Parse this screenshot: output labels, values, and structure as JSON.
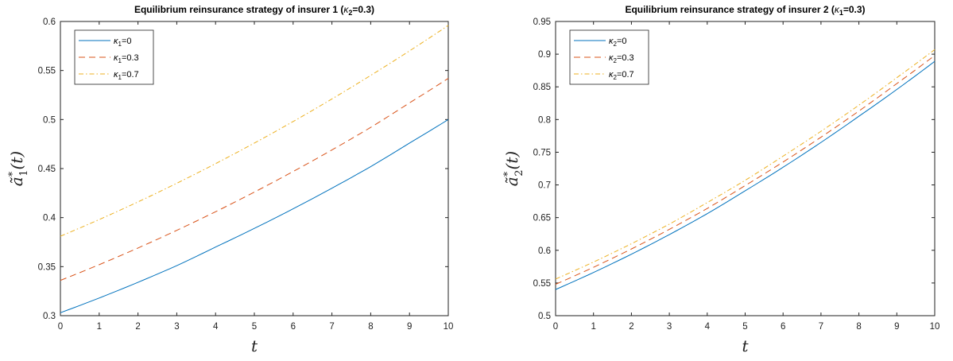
{
  "colors": {
    "series1": "#0072BD",
    "series2": "#D95319",
    "series3": "#EDB120"
  },
  "chart_data": [
    {
      "type": "line",
      "title_prefix": "Equilibrium reinsurance strategy of insurer 1 (",
      "title_greek": "κ",
      "title_sub": "2",
      "title_suffix": "=0.3)",
      "xlabel": "t",
      "ylabel_base": "ã",
      "ylabel_sup": "*",
      "ylabel_sub": "1",
      "ylabel_arg": "(t)",
      "xlim": [
        0,
        10
      ],
      "ylim": [
        0.3,
        0.6
      ],
      "xticks": [
        "0",
        "1",
        "2",
        "3",
        "4",
        "5",
        "6",
        "7",
        "8",
        "9",
        "10"
      ],
      "yticks": [
        "0.3",
        "0.35",
        "0.4",
        "0.45",
        "0.5",
        "0.55",
        "0.6"
      ],
      "x": [
        0,
        1,
        2,
        3,
        4,
        5,
        6,
        7,
        8,
        9,
        10
      ],
      "series": [
        {
          "legend_greek": "κ",
          "legend_sub": "1",
          "legend_suffix": "=0",
          "dash": "",
          "values": [
            0.303,
            0.318,
            0.334,
            0.351,
            0.37,
            0.389,
            0.409,
            0.43,
            0.452,
            0.476,
            0.5
          ]
        },
        {
          "legend_greek": "κ",
          "legend_sub": "1",
          "legend_suffix": "=0.3",
          "dash": "8,5",
          "values": [
            0.336,
            0.352,
            0.369,
            0.387,
            0.406,
            0.426,
            0.447,
            0.469,
            0.492,
            0.517,
            0.542
          ]
        },
        {
          "legend_greek": "κ",
          "legend_sub": "1",
          "legend_suffix": "=0.7",
          "dash": "6,3,1.5,3",
          "values": [
            0.381,
            0.398,
            0.416,
            0.435,
            0.455,
            0.476,
            0.498,
            0.521,
            0.545,
            0.57,
            0.596
          ]
        }
      ],
      "legend_position": "top-left"
    },
    {
      "type": "line",
      "title_prefix": "Equilibrium reinsurance strategy of insurer 2 (",
      "title_greek": "κ",
      "title_sub": "1",
      "title_suffix": "=0.3)",
      "xlabel": "t",
      "ylabel_base": "ã",
      "ylabel_sup": "*",
      "ylabel_sub": "2",
      "ylabel_arg": "(t)",
      "xlim": [
        0,
        10
      ],
      "ylim": [
        0.5,
        0.95
      ],
      "xticks": [
        "0",
        "1",
        "2",
        "3",
        "4",
        "5",
        "6",
        "7",
        "8",
        "9",
        "10"
      ],
      "yticks": [
        "0.5",
        "0.55",
        "0.6",
        "0.65",
        "0.7",
        "0.75",
        "0.8",
        "0.85",
        "0.9",
        "0.95"
      ],
      "x": [
        0,
        1,
        2,
        3,
        4,
        5,
        6,
        7,
        8,
        9,
        10
      ],
      "series": [
        {
          "legend_greek": "κ",
          "legend_sub": "2",
          "legend_suffix": "=0",
          "dash": "",
          "values": [
            0.54,
            0.566,
            0.594,
            0.624,
            0.656,
            0.691,
            0.727,
            0.765,
            0.805,
            0.846,
            0.889
          ]
        },
        {
          "legend_greek": "κ",
          "legend_sub": "2",
          "legend_suffix": "=0.3",
          "dash": "8,5",
          "values": [
            0.548,
            0.574,
            0.602,
            0.632,
            0.664,
            0.699,
            0.735,
            0.773,
            0.813,
            0.855,
            0.898
          ]
        },
        {
          "legend_greek": "κ",
          "legend_sub": "2",
          "legend_suffix": "=0.7",
          "dash": "6,3,1.5,3",
          "values": [
            0.556,
            0.582,
            0.61,
            0.64,
            0.673,
            0.707,
            0.744,
            0.782,
            0.822,
            0.864,
            0.907
          ]
        }
      ],
      "legend_position": "top-left"
    }
  ]
}
